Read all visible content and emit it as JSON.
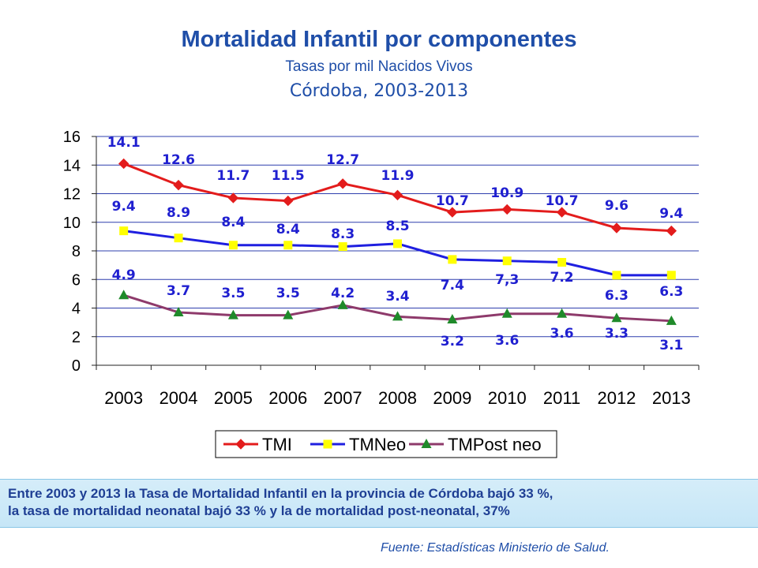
{
  "header": {
    "title": "Mortalidad Infantil por componentes",
    "subtitle": "Tasas por mil Nacidos Vivos",
    "location": "Córdoba, 2003-2013"
  },
  "chart_data": {
    "type": "line",
    "x": [
      "2003",
      "2004",
      "2005",
      "2006",
      "2007",
      "2008",
      "2009",
      "2010",
      "2011",
      "2012",
      "2013"
    ],
    "ylim": [
      0,
      16
    ],
    "yticks": [
      "0",
      "2",
      "4",
      "6",
      "8",
      "10",
      "12",
      "14",
      "16"
    ],
    "grid": true,
    "legend_position": "bottom",
    "series": [
      {
        "name": "TMI",
        "color": "#e31c1c",
        "marker": "diamond",
        "values": [
          14.1,
          12.6,
          11.7,
          11.5,
          12.7,
          11.9,
          10.7,
          10.9,
          10.7,
          9.6,
          9.4
        ],
        "labels": [
          "14.1",
          "12.6",
          "11.7",
          "11.5",
          "12.7",
          "11.9",
          "10.7",
          "10.9",
          "10.7",
          "9.6",
          "9.4"
        ]
      },
      {
        "name": "TMNeo",
        "color": "#1f1fe0",
        "marker_color": "#ffff00",
        "marker": "square",
        "values": [
          9.4,
          8.9,
          8.4,
          8.4,
          8.3,
          8.5,
          7.4,
          7.3,
          7.2,
          6.3,
          6.3
        ],
        "labels": [
          "9.4",
          "8.9",
          "8.4",
          "8.4",
          "8.3",
          "8.5",
          "7.4",
          "7,3",
          "7.2",
          "6.3",
          "6.3"
        ]
      },
      {
        "name": "TMPost neo",
        "color": "#8e3a6b",
        "marker_color": "#1f8a2a",
        "marker": "triangle",
        "values": [
          4.9,
          3.7,
          3.5,
          3.5,
          4.2,
          3.4,
          3.2,
          3.6,
          3.6,
          3.3,
          3.1
        ],
        "labels": [
          "4.9",
          "3.7",
          "3.5",
          "3.5",
          "4.2",
          "3.4",
          "3.2",
          "3.6",
          "3.6",
          "3.3",
          "3.1"
        ]
      }
    ]
  },
  "note": {
    "line1": "Entre 2003 y 2013 la Tasa de Mortalidad Infantil en la provincia de Córdoba bajó 33 %,",
    "line2": "la tasa de mortalidad neonatal bajó 33 % y la de mortalidad post-neonatal, 37%"
  },
  "source": "Fuente: Estadísticas Ministerio de Salud."
}
